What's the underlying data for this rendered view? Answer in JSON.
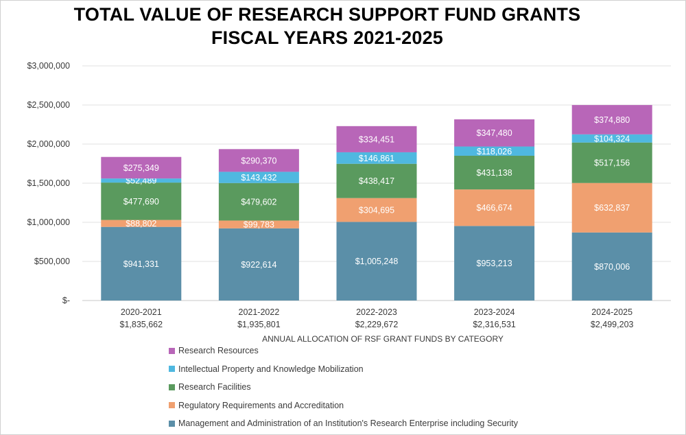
{
  "chart_data": {
    "type": "bar",
    "stacked": true,
    "title": [
      "TOTAL VALUE OF RESEARCH SUPPORT FUND GRANTS",
      "FISCAL YEARS 2021-2025"
    ],
    "xlabel": "ANNUAL ALLOCATION OF RSF GRANT FUNDS BY CATEGORY",
    "ylabel": "",
    "ylim": [
      0,
      3000000
    ],
    "yticks": [
      0,
      500000,
      1000000,
      1500000,
      2000000,
      2500000,
      3000000
    ],
    "ytick_labels": [
      "$-",
      "$500,000",
      "$1,000,000",
      "$1,500,000",
      "$2,000,000",
      "$2,500,000",
      "$3,000,000"
    ],
    "grid": true,
    "legend_position": "bottom",
    "categories": [
      "2020-2021",
      "2021-2022",
      "2022-2023",
      "2023-2024",
      "2024-2025"
    ],
    "totals": [
      "$1,835,662",
      "$1,935,801",
      "$2,229,672",
      "$2,316,531",
      "$2,499,203"
    ],
    "series": [
      {
        "name": "Management and Administration of an Institution's Research Enterprise including Security",
        "color": "#5b8fa8",
        "values": [
          941331,
          922614,
          1005248,
          953213,
          870006
        ],
        "labels": [
          "$941,331",
          "$922,614",
          "$1,005,248",
          "$953,213",
          "$870,006"
        ]
      },
      {
        "name": "Regulatory Requirements and Accreditation",
        "color": "#f0a070",
        "values": [
          88802,
          99783,
          304695,
          466674,
          632837
        ],
        "labels": [
          "$88,802",
          "$99,783",
          "$304,695",
          "$466,674",
          "$632,837"
        ]
      },
      {
        "name": "Research Facilities",
        "color": "#5a9a5e",
        "values": [
          477690,
          479602,
          438417,
          431138,
          517156
        ],
        "labels": [
          "$477,690",
          "$479,602",
          "$438,417",
          "$431,138",
          "$517,156"
        ]
      },
      {
        "name": "Intellectual Property and Knowledge Mobilization",
        "color": "#4fb8e0",
        "values": [
          52489,
          143432,
          146861,
          118026,
          104324
        ],
        "labels": [
          "$52,489",
          "$143,432",
          "$146,861",
          "$118,026",
          "$104,324"
        ]
      },
      {
        "name": "Research Resources",
        "color": "#b866b8",
        "values": [
          275349,
          290370,
          334451,
          347480,
          374880
        ],
        "labels": [
          "$275,349",
          "$290,370",
          "$334,451",
          "$347,480",
          "$374,880"
        ]
      }
    ],
    "legend_order": [
      "Research Resources",
      "Intellectual Property and Knowledge Mobilization",
      "Research Facilities",
      "Regulatory Requirements and Accreditation",
      "Management and Administration of an Institution's Research Enterprise including Security"
    ]
  }
}
